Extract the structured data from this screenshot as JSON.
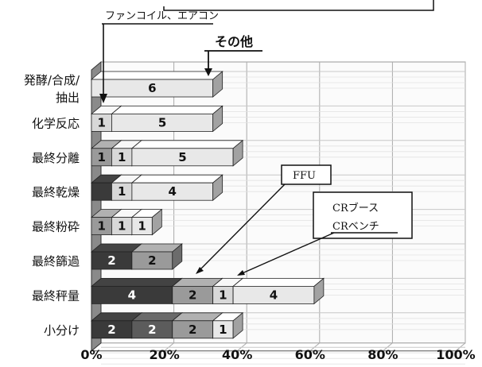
{
  "chart_data": {
    "type": "bar",
    "orientation": "horizontal",
    "stacked": true,
    "categories": [
      "発酵/合成/抽出",
      "化学反応",
      "最終分離",
      "最終乾燥",
      "最終粉砕",
      "最終篩過",
      "最終秤量",
      "小分け"
    ],
    "category_lines": [
      [
        "発酵/合成/",
        "抽出"
      ],
      [
        "化学反応"
      ],
      [
        "最終分離"
      ],
      [
        "最終乾燥"
      ],
      [
        "最終粉砕"
      ],
      [
        "最終篩過"
      ],
      [
        "最終秤量"
      ],
      [
        "小分け"
      ]
    ],
    "series": [
      {
        "name": "FFU",
        "color": "#3a3a3a",
        "values": [
          0,
          0,
          0,
          1,
          0,
          2,
          4,
          2
        ],
        "labels": [
          "",
          "",
          "",
          "",
          "",
          "2",
          "4",
          "2"
        ]
      },
      {
        "name": "CRブース",
        "color": "#5c5c5c",
        "values": [
          0,
          0,
          0,
          0,
          0,
          0,
          0,
          2
        ],
        "labels": [
          "",
          "",
          "",
          "",
          "",
          "",
          "",
          "2"
        ]
      },
      {
        "name": "CRベンチ",
        "color": "#9a9a9a",
        "values": [
          0,
          0,
          1,
          0,
          1,
          2,
          2,
          2
        ],
        "labels": [
          "",
          "",
          "1",
          "",
          "1",
          "2",
          "2",
          "2"
        ]
      },
      {
        "name": "ファンコイル、エアコン",
        "color": "#d8d8d8",
        "values": [
          0,
          1,
          1,
          1,
          1,
          0,
          1,
          0
        ],
        "labels": [
          "",
          "1",
          "1",
          "1",
          "1",
          "",
          "1",
          ""
        ]
      },
      {
        "name": "その他",
        "color": "#e8e8e8",
        "values": [
          6,
          5,
          5,
          4,
          1,
          0,
          4,
          1
        ],
        "labels": [
          "6",
          "5",
          "5",
          "4",
          "1",
          "",
          "4",
          "1"
        ]
      }
    ],
    "xlim": [
      0,
      100
    ],
    "x_tick_labels": [
      "0%",
      "20%",
      "40%",
      "60%",
      "80%",
      "100%"
    ],
    "total_scale": 18,
    "annotations": {
      "fancoil": "ファンコイル、エアコン",
      "other": "その他",
      "ffu": "FFU",
      "cr_booth": "CRブース",
      "cr_bench": "CRベンチ"
    },
    "grid": true,
    "legend": "callouts"
  }
}
